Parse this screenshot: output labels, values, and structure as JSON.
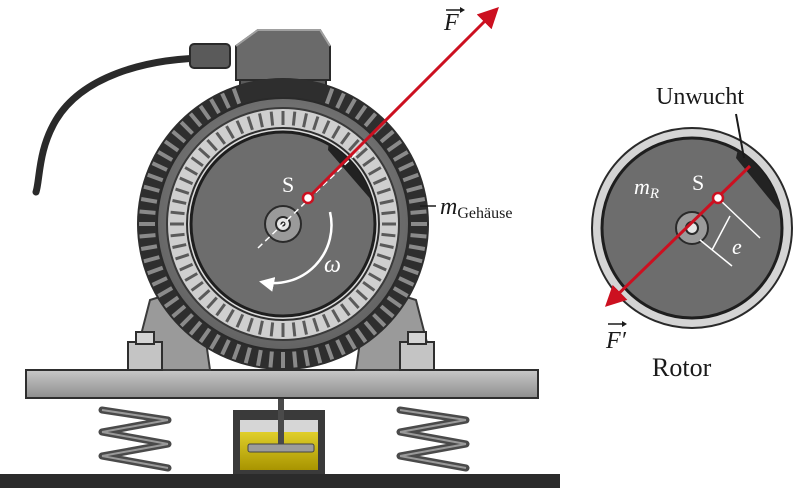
{
  "labels": {
    "force": "F",
    "force_reaction": "F′",
    "center_of_mass": "S",
    "center_of_mass_rotor": "S",
    "omega": "ω",
    "housing_mass_symbol": "m",
    "housing_mass_subscript": "Gehäuse",
    "imbalance": "Unwucht",
    "rotor_mass_symbol": "m",
    "rotor_mass_subscript": "R",
    "eccentricity": "e",
    "rotor": "Rotor"
  },
  "colors": {
    "force_arrow": "#cc1020",
    "steel_dark": "#3c3c3c",
    "steel_mid": "#7a7a7a",
    "steel_light": "#b8b8b8",
    "rotor_face": "#6d6d6d",
    "damper_fluid": "#c8b400",
    "ground": "#2b2b2b"
  },
  "icons": {
    "force_arrowhead": "arrowhead-icon",
    "rotation_arrow": "curved-arrow-icon"
  }
}
